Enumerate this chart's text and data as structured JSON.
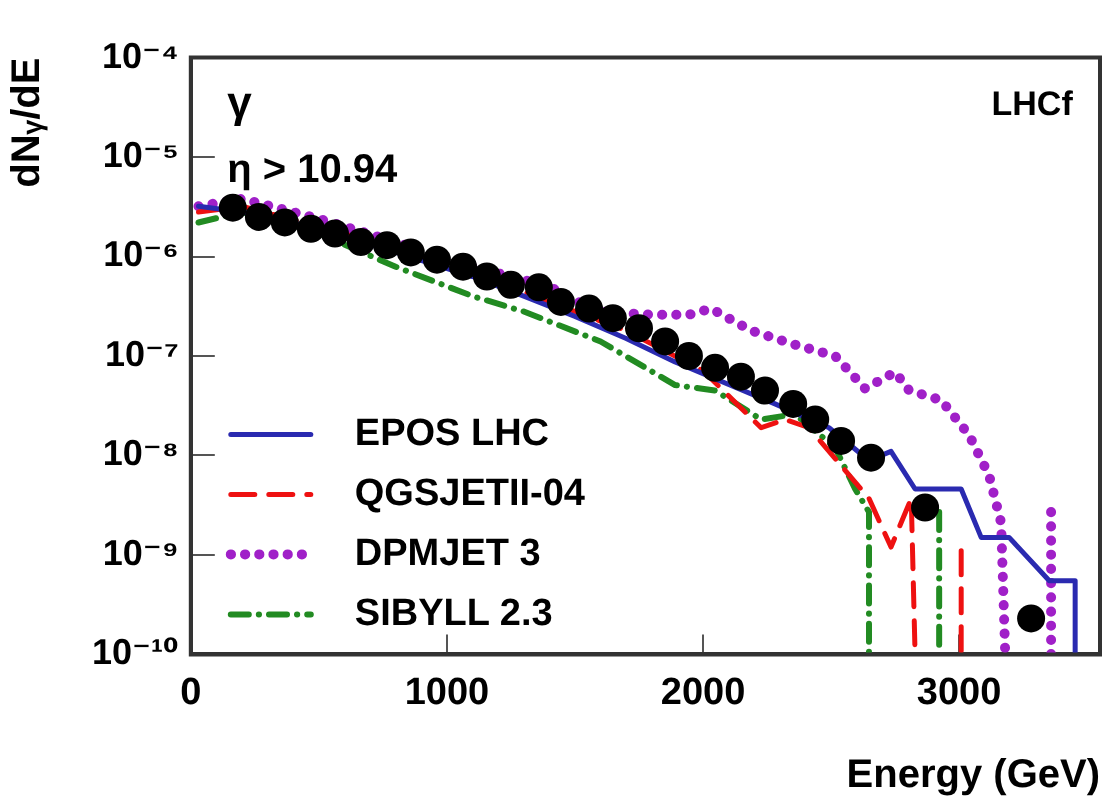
{
  "chart_data": {
    "type": "line",
    "xlabel": "Energy (GeV)",
    "ylabel": "dNᵧ/dE",
    "log": "y",
    "grid": false,
    "legend": "bottom left",
    "xlim": [
      0,
      3550
    ],
    "xticks": [
      0,
      1000,
      2000,
      3000
    ],
    "ylim": [
      1e-10,
      0.0001
    ],
    "yticks": [
      {
        "value": 1e-10,
        "label": "10⁻¹⁰"
      },
      {
        "value": 1e-09,
        "label": "10⁻⁹"
      },
      {
        "value": 1e-08,
        "label": "10⁻⁸"
      },
      {
        "value": 1e-07,
        "label": "10⁻⁷"
      },
      {
        "value": 1e-06,
        "label": "10⁻⁶"
      },
      {
        "value": 1e-05,
        "label": "10⁻⁵"
      },
      {
        "value": 0.0001,
        "label": "10⁻⁴"
      }
    ],
    "annotations": [
      "γ",
      "η > 10.94",
      "LHCf"
    ],
    "series": [
      {
        "name": "EPOS LHC",
        "color": "#2a2ab0",
        "line_style": "solid",
        "marker": "none",
        "x": [
          30,
          200,
          500,
          800,
          1100,
          1300,
          1500,
          1700,
          1891,
          2281,
          2492,
          2648,
          2734,
          2828,
          3008,
          3086,
          3195,
          3352,
          3453,
          3453
        ],
        "values": [
          3.2e-06,
          2.8e-06,
          1.9e-06,
          1.1e-06,
          6.3e-07,
          4e-07,
          2.5e-07,
          1.5e-07,
          8.7e-08,
          3.3e-08,
          1.9e-08,
          8.9e-09,
          1.1e-08,
          4.6e-09,
          4.6e-09,
          1.5e-09,
          1.5e-09,
          5.5e-10,
          5.5e-10,
          1e-10
        ]
      },
      {
        "name": "QGSJETII-04",
        "color": "#ee1111",
        "line_style": "dashed",
        "marker": "none",
        "x": [
          30,
          200,
          500,
          800,
          1100,
          1400,
          1700,
          2000,
          2227,
          2320,
          2414,
          2648,
          2734,
          2813,
          2828,
          2900,
          3008,
          3008
        ],
        "values": [
          2.8e-06,
          3.2e-06,
          2e-06,
          1.2e-06,
          7.1e-07,
          3.5e-07,
          1.8e-07,
          7.1e-08,
          1.9e-08,
          2.3e-08,
          1.9e-08,
          3.7e-09,
          1.2e-09,
          3.7e-09,
          1e-10,
          null,
          1.1e-09,
          1e-10
        ]
      },
      {
        "name": "DPMJET 3",
        "color": "#a020c8",
        "line_style": "dotted",
        "marker": "none",
        "x": [
          30,
          200,
          500,
          800,
          1100,
          1400,
          1586,
          1800,
          1945,
          2031,
          2188,
          2359,
          2516,
          2633,
          2750,
          2805,
          2930,
          3039,
          3117,
          3164,
          3180,
          3250,
          3359,
          3359
        ],
        "values": [
          3.2e-06,
          3.8e-06,
          2.4e-06,
          1.4e-06,
          7.9e-07,
          5e-07,
          2.8e-07,
          2.6e-07,
          2.6e-07,
          3e-07,
          1.8e-07,
          1.3e-07,
          1e-07,
          4.7e-08,
          6.9e-08,
          4.5e-08,
          3.6e-08,
          1.6e-08,
          6.3e-09,
          2.1e-09,
          1e-10,
          null,
          2.7e-09,
          1e-10
        ]
      },
      {
        "name": "SIBYLL 2.3",
        "color": "#228b22",
        "line_style": "dashdot",
        "marker": "none",
        "x": [
          30,
          200,
          500,
          800,
          1100,
          1300,
          1600,
          1891,
          2047,
          2227,
          2359,
          2516,
          2594,
          2648,
          2648,
          2800,
          2922,
          2922
        ],
        "values": [
          2.2e-06,
          2.8e-06,
          1.7e-06,
          7.9e-07,
          4e-07,
          2.8e-07,
          1.4e-07,
          5.1e-08,
          4.5e-08,
          2.3e-08,
          2.6e-08,
          1.2e-08,
          4.6e-09,
          2.7e-09,
          1e-10,
          null,
          2.7e-09,
          1e-10
        ]
      },
      {
        "type": "scatter",
        "color": "#000000",
        "marker": "circle",
        "x": [
          164,
          266,
          367,
          469,
          563,
          664,
          766,
          859,
          961,
          1063,
          1156,
          1250,
          1359,
          1445,
          1555,
          1648,
          1750,
          1852,
          1945,
          2047,
          2148,
          2242,
          2352,
          2438,
          2539,
          2656,
          2867,
          3281
        ],
        "values": [
          3.1e-06,
          2.5e-06,
          2.2e-06,
          1.9e-06,
          1.7e-06,
          1.4e-06,
          1.3e-06,
          1.1e-06,
          9.3e-07,
          7.9e-07,
          6.3e-07,
          5.2e-07,
          4.9e-07,
          3.5e-07,
          3e-07,
          2.4e-07,
          1.9e-07,
          1.4e-07,
          1e-07,
          7.6e-08,
          6.2e-08,
          4.5e-08,
          3.3e-08,
          2.3e-08,
          1.4e-08,
          9.5e-09,
          3e-09,
          2.3e-10
        ]
      }
    ]
  }
}
